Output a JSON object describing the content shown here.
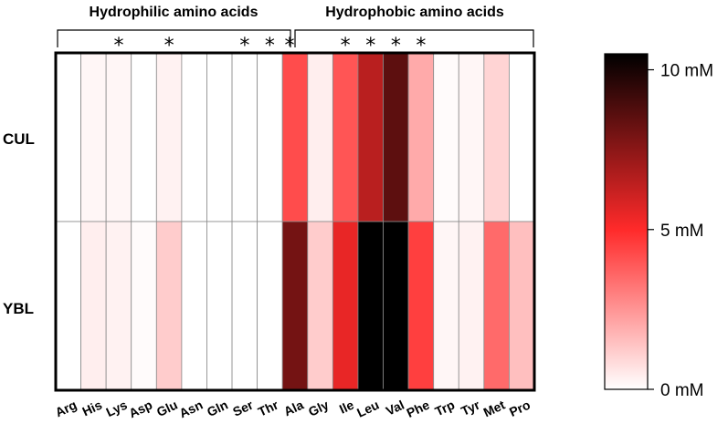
{
  "chart_data": {
    "type": "heatmap",
    "groups": [
      {
        "label": "Hydrophilic amino acids",
        "columns": [
          "Arg",
          "His",
          "Lys",
          "Asp",
          "Glu",
          "Asn",
          "Gln",
          "Ser",
          "Thr"
        ]
      },
      {
        "label": "Hydrophobic amino acids",
        "columns": [
          "Ala",
          "Gly",
          "Ile",
          "Leu",
          "Val",
          "Phe",
          "Trp",
          "Tyr",
          "Met"
        ]
      }
    ],
    "columns": [
      "Arg",
      "His",
      "Lys",
      "Asp",
      "Glu",
      "Asn",
      "Gln",
      "Ser",
      "Thr",
      "Ala",
      "Gly",
      "Ile",
      "Leu",
      "Val",
      "Phe",
      "Trp",
      "Tyr",
      "Met",
      "Pro"
    ],
    "rows": [
      "CUL",
      "YBL"
    ],
    "values": [
      [
        0.0,
        0.2,
        0.2,
        0.0,
        0.3,
        0.0,
        0.0,
        0.0,
        0.0,
        4.2,
        0.4,
        4.0,
        6.5,
        8.5,
        2.0,
        0.1,
        0.2,
        1.0,
        0.0
      ],
      [
        0.0,
        0.4,
        0.3,
        0.1,
        1.2,
        0.0,
        0.0,
        0.0,
        0.0,
        8.0,
        1.2,
        5.5,
        10.8,
        10.8,
        4.5,
        0.2,
        0.3,
        3.5,
        1.5
      ]
    ],
    "significant": [
      "Lys",
      "Glu",
      "Ser",
      "Thr",
      "Ala",
      "Ile",
      "Leu",
      "Val",
      "Phe"
    ],
    "colorbar": {
      "min": 0,
      "max": 10.5,
      "ticks": [
        {
          "value": 0,
          "label": "0 mM"
        },
        {
          "value": 5,
          "label": "5 mM"
        },
        {
          "value": 10,
          "label": "10 mM"
        }
      ],
      "stops": [
        "#ffffff",
        "#ff2a2a",
        "#000000"
      ]
    }
  }
}
